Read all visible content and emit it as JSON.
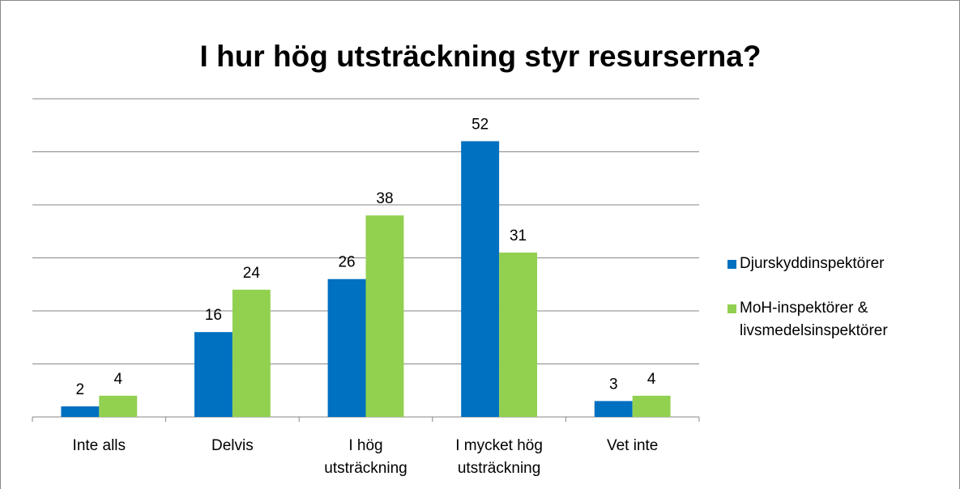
{
  "chart_data": {
    "type": "bar",
    "title": "I hur hög utsträckning styr resurserna?",
    "categories": [
      "Inte alls",
      "Delvis",
      "I hög utsträckning",
      "I mycket hög utsträckning",
      "Vet inte"
    ],
    "series": [
      {
        "name": "Djurskyddinspektörer",
        "color": "#0070c0",
        "values": [
          2,
          16,
          26,
          52,
          3
        ]
      },
      {
        "name": "MoH-inspektörer & livsmedelsinspektörer",
        "color": "#92d050",
        "values": [
          4,
          24,
          38,
          31,
          4
        ]
      }
    ],
    "ylim": [
      0,
      60
    ],
    "yticks": [
      0,
      10,
      20,
      30,
      40,
      50,
      60
    ],
    "grid": true,
    "legend": "right"
  }
}
